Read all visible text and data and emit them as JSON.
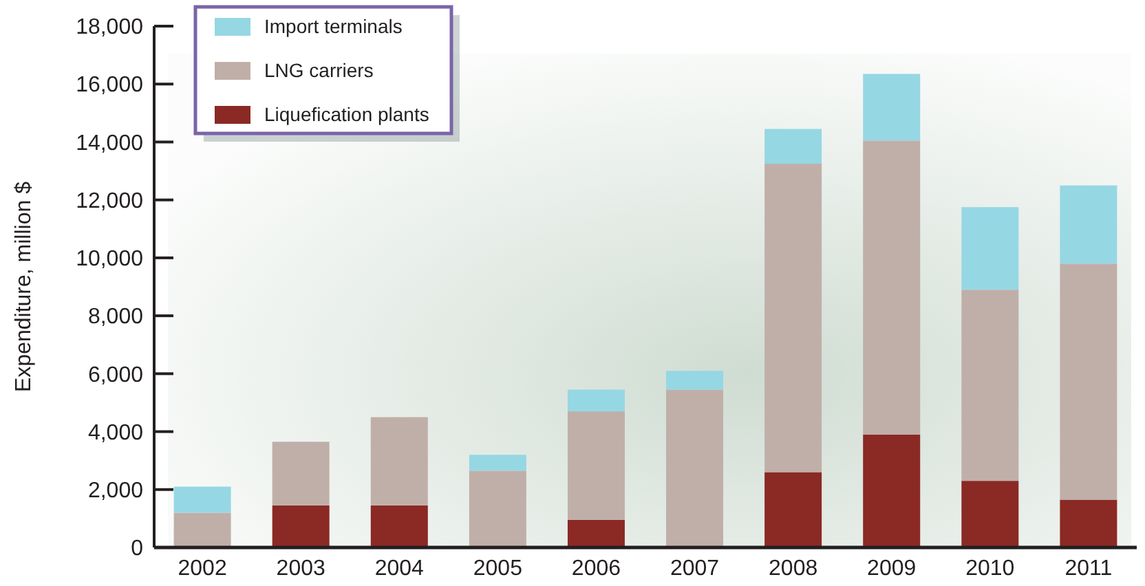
{
  "chart_data": {
    "type": "bar",
    "stacked": true,
    "ylabel": "Expenditure, million $",
    "categories": [
      "2002",
      "2003",
      "2004",
      "2005",
      "2006",
      "2007",
      "2008",
      "2009",
      "2010",
      "2011"
    ],
    "series": [
      {
        "name": "Liquefication plants",
        "color": "#8b2924",
        "values": [
          0,
          1450,
          1450,
          0,
          950,
          0,
          2600,
          3900,
          2300,
          1650
        ]
      },
      {
        "name": "LNG carriers",
        "color": "#c0afa8",
        "values": [
          1200,
          2200,
          3050,
          2650,
          3750,
          5450,
          10650,
          10150,
          6600,
          8150
        ]
      },
      {
        "name": "Import terminals",
        "color": "#96d7e4",
        "values": [
          900,
          0,
          0,
          550,
          750,
          650,
          1200,
          2300,
          2850,
          2700
        ]
      }
    ],
    "ylim": [
      0,
      18000
    ],
    "yticks": [
      0,
      {
        "value": 2000,
        "label": "2,000"
      },
      {
        "value": 4000,
        "label": "4,000"
      },
      {
        "value": 6000,
        "label": "6,000"
      },
      {
        "value": 8000,
        "label": "8,000"
      },
      {
        "value": 10000,
        "label": "10,000"
      },
      {
        "value": 12000,
        "label": "12,000"
      },
      {
        "value": 14000,
        "label": "14,000"
      },
      {
        "value": 16000,
        "label": "16,000"
      },
      {
        "value": 18000,
        "label": "18,000"
      }
    ],
    "legend": "top left",
    "grid": false
  }
}
